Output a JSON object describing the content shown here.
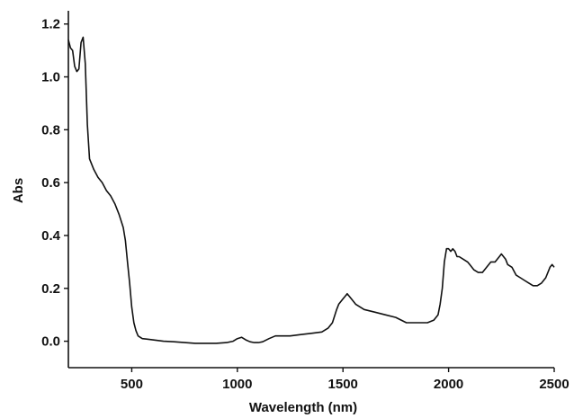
{
  "chart_data": {
    "type": "line",
    "title": "",
    "xlabel": "Wavelength (nm)",
    "ylabel": "Abs",
    "xlim": [
      200,
      2500
    ],
    "ylim": [
      -0.1,
      1.25
    ],
    "xticks": [
      500,
      1000,
      1500,
      2000,
      2500
    ],
    "xtick_labels": [
      "500",
      "1000",
      "1500",
      "2000",
      "2500"
    ],
    "yticks": [
      0.0,
      0.2,
      0.4,
      0.6,
      0.8,
      1.0,
      1.2
    ],
    "ytick_labels": [
      "0.0",
      "0.2",
      "0.4",
      "0.6",
      "0.8",
      "1.0",
      "1.2"
    ],
    "grid": false,
    "legend": "none",
    "series": [
      {
        "color": "#111111",
        "x": [
          200,
          210,
          220,
          230,
          240,
          250,
          260,
          270,
          280,
          290,
          300,
          320,
          340,
          360,
          380,
          400,
          420,
          440,
          460,
          470,
          480,
          490,
          500,
          510,
          520,
          530,
          540,
          550,
          570,
          600,
          650,
          700,
          750,
          800,
          850,
          900,
          950,
          980,
          1000,
          1020,
          1040,
          1060,
          1080,
          1100,
          1120,
          1150,
          1180,
          1200,
          1250,
          1300,
          1350,
          1400,
          1430,
          1450,
          1470,
          1480,
          1500,
          1510,
          1520,
          1540,
          1560,
          1600,
          1650,
          1700,
          1750,
          1800,
          1850,
          1900,
          1930,
          1950,
          1960,
          1970,
          1980,
          1990,
          2000,
          2010,
          2020,
          2030,
          2040,
          2050,
          2070,
          2090,
          2100,
          2120,
          2140,
          2160,
          2180,
          2200,
          2220,
          2240,
          2250,
          2260,
          2270,
          2280,
          2300,
          2320,
          2340,
          2360,
          2380,
          2400,
          2420,
          2440,
          2460,
          2480,
          2490,
          2500
        ],
        "y": [
          1.14,
          1.11,
          1.1,
          1.04,
          1.02,
          1.03,
          1.13,
          1.15,
          1.05,
          0.82,
          0.69,
          0.65,
          0.62,
          0.6,
          0.57,
          0.55,
          0.52,
          0.48,
          0.43,
          0.38,
          0.3,
          0.22,
          0.13,
          0.07,
          0.04,
          0.02,
          0.015,
          0.01,
          0.008,
          0.005,
          0.0,
          -0.002,
          -0.005,
          -0.008,
          -0.008,
          -0.008,
          -0.005,
          0.0,
          0.01,
          0.015,
          0.005,
          -0.002,
          -0.005,
          -0.005,
          -0.002,
          0.01,
          0.02,
          0.02,
          0.02,
          0.025,
          0.03,
          0.035,
          0.05,
          0.07,
          0.12,
          0.14,
          0.16,
          0.17,
          0.18,
          0.16,
          0.14,
          0.12,
          0.11,
          0.1,
          0.09,
          0.07,
          0.07,
          0.07,
          0.08,
          0.1,
          0.14,
          0.2,
          0.3,
          0.35,
          0.35,
          0.34,
          0.35,
          0.34,
          0.32,
          0.32,
          0.31,
          0.3,
          0.29,
          0.27,
          0.26,
          0.26,
          0.28,
          0.3,
          0.3,
          0.32,
          0.33,
          0.32,
          0.31,
          0.29,
          0.28,
          0.25,
          0.24,
          0.23,
          0.22,
          0.21,
          0.21,
          0.22,
          0.24,
          0.28,
          0.29,
          0.28
        ]
      }
    ]
  }
}
